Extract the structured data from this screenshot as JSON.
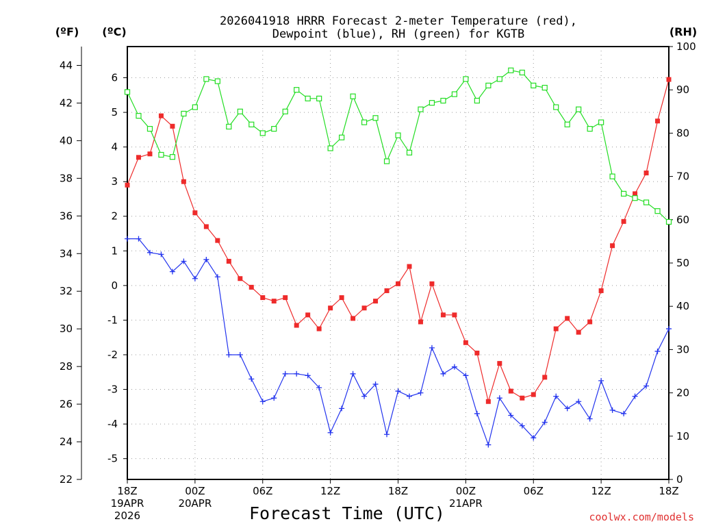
{
  "chart_data": {
    "type": "line",
    "title": [
      "2026041918 HRRR Forecast 2-meter Temperature (red),",
      "Dewpoint (blue), RH (green) for KGTB"
    ],
    "unit_labels": {
      "fahrenheit": "(ºF)",
      "celsius": "(ºC)",
      "rh": "(RH)"
    },
    "xlabel": "Forecast Time (UTC)",
    "credit": "coolwx.com/models",
    "x_hours": [
      0,
      1,
      2,
      3,
      4,
      5,
      6,
      7,
      8,
      9,
      10,
      11,
      12,
      13,
      14,
      15,
      16,
      17,
      18,
      19,
      20,
      21,
      22,
      23,
      24,
      25,
      26,
      27,
      28,
      29,
      30,
      31,
      32,
      33,
      34,
      35,
      36,
      37,
      38,
      39,
      40,
      41,
      42,
      43,
      44,
      45,
      46,
      47,
      48
    ],
    "xlim": [
      0,
      48
    ],
    "x_ticks": [
      {
        "hour": 0,
        "lines": [
          "18Z",
          "19APR",
          "2026"
        ]
      },
      {
        "hour": 6,
        "lines": [
          "00Z",
          "20APR"
        ]
      },
      {
        "hour": 12,
        "lines": [
          "06Z"
        ]
      },
      {
        "hour": 18,
        "lines": [
          "12Z"
        ]
      },
      {
        "hour": 24,
        "lines": [
          "18Z"
        ]
      },
      {
        "hour": 30,
        "lines": [
          "00Z",
          "21APR"
        ]
      },
      {
        "hour": 36,
        "lines": [
          "06Z"
        ]
      },
      {
        "hour": 42,
        "lines": [
          "12Z"
        ]
      },
      {
        "hour": 48,
        "lines": [
          "18Z"
        ]
      }
    ],
    "y_celsius": {
      "range": [
        -5.6,
        6.9
      ],
      "ticks": [
        "6",
        "5",
        "4",
        "3",
        "2",
        "1",
        "0",
        "-1",
        "-2",
        "-3",
        "-4",
        "-5"
      ]
    },
    "y_fahrenheit": {
      "range": [
        22,
        45
      ],
      "ticks": [
        "44",
        "42",
        "40",
        "38",
        "36",
        "34",
        "32",
        "30",
        "28",
        "26",
        "24",
        "22"
      ]
    },
    "y_rh": {
      "range": [
        0,
        100
      ],
      "ticks": [
        "100",
        "90",
        "80",
        "70",
        "60",
        "50",
        "40",
        "30",
        "20",
        "10",
        "0"
      ]
    },
    "series": [
      {
        "name": "Temperature",
        "color": "#ee2b2b",
        "marker": "filled-square",
        "axis": "celsius",
        "values": [
          2.9,
          3.7,
          3.8,
          4.9,
          4.6,
          3.0,
          2.1,
          1.7,
          1.3,
          0.7,
          0.2,
          -0.05,
          -0.35,
          -0.45,
          -0.35,
          -1.15,
          -0.85,
          -1.25,
          -0.65,
          -0.35,
          -0.95,
          -0.65,
          -0.45,
          -0.15,
          0.05,
          0.55,
          -1.05,
          0.05,
          -0.85,
          -0.85,
          -1.65,
          -1.95,
          -3.35,
          -2.25,
          -3.05,
          -3.25,
          -3.15,
          -2.65,
          -1.25,
          -0.95,
          -1.35,
          -1.05,
          -0.15,
          1.15,
          1.85,
          2.65,
          3.25,
          4.75,
          5.95
        ]
      },
      {
        "name": "Dewpoint",
        "color": "#2233ee",
        "marker": "plus",
        "axis": "celsius",
        "values": [
          1.35,
          1.35,
          0.95,
          0.9,
          0.4,
          0.7,
          0.2,
          0.75,
          0.25,
          -2.0,
          -2.0,
          -2.7,
          -3.35,
          -3.25,
          -2.55,
          -2.55,
          -2.6,
          -2.95,
          -4.25,
          -3.55,
          -2.55,
          -3.2,
          -2.85,
          -4.3,
          -3.05,
          -3.2,
          -3.1,
          -1.8,
          -2.55,
          -2.35,
          -2.6,
          -3.7,
          -4.6,
          -3.25,
          -3.75,
          -4.05,
          -4.4,
          -3.95,
          -3.2,
          -3.55,
          -3.35,
          -3.85,
          -2.75,
          -3.6,
          -3.7,
          -3.2,
          -2.9,
          -1.9,
          -1.25
        ]
      },
      {
        "name": "RH",
        "color": "#22dd22",
        "marker": "open-square",
        "axis": "rh",
        "values": [
          89.5,
          84.0,
          81.0,
          75.0,
          74.5,
          84.5,
          86.0,
          92.5,
          92.0,
          81.5,
          85.0,
          82.0,
          80.0,
          81.0,
          85.0,
          90.0,
          88.0,
          88.0,
          76.5,
          79.0,
          88.5,
          82.5,
          83.5,
          73.5,
          79.5,
          75.5,
          85.5,
          87.0,
          87.5,
          89.0,
          92.5,
          87.5,
          91.0,
          92.5,
          94.5,
          94.0,
          91.0,
          90.5,
          86.0,
          82.0,
          85.5,
          81.0,
          82.5,
          70.0,
          66.0,
          65.0,
          64.0,
          62.0,
          59.5
        ]
      }
    ]
  }
}
